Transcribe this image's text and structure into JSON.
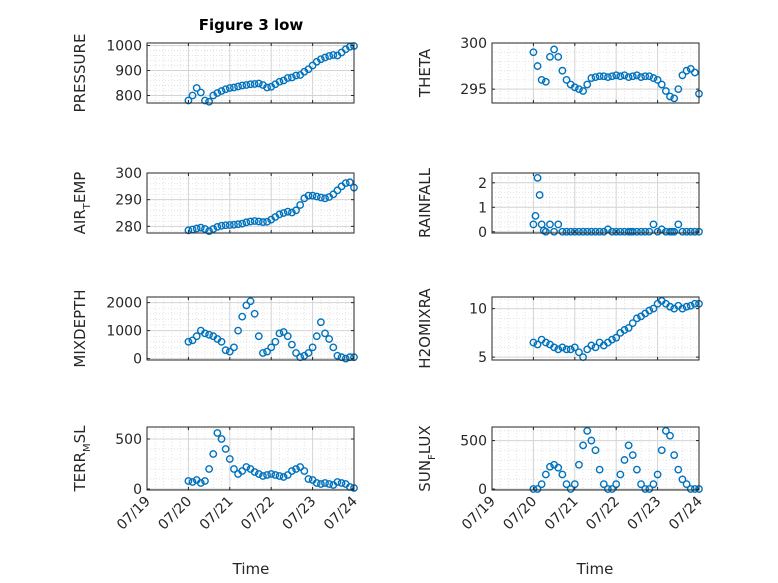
{
  "figure": {
    "title": "Figure 3 low",
    "xlabel": "Time",
    "marker_color": "#0072BD",
    "x_tick_labels": [
      "07/19",
      "07/20",
      "07/21",
      "07/22",
      "07/23",
      "07/24"
    ]
  },
  "chart_data": [
    {
      "type": "scatter",
      "ylabel": "PRESSURE",
      "ylim": [
        770,
        1010
      ],
      "yticks": [
        800,
        900,
        1000
      ],
      "grid": true,
      "x": [
        20.0,
        20.1,
        20.2,
        20.3,
        20.4,
        20.5,
        20.6,
        20.7,
        20.8,
        20.9,
        21.0,
        21.1,
        21.2,
        21.3,
        21.4,
        21.5,
        21.6,
        21.7,
        21.8,
        21.9,
        22.0,
        22.1,
        22.2,
        22.3,
        22.4,
        22.5,
        22.6,
        22.7,
        22.8,
        22.9,
        23.0,
        23.1,
        23.2,
        23.3,
        23.4,
        23.5,
        23.6,
        23.7,
        23.8,
        23.9,
        24.0
      ],
      "y": [
        780,
        800,
        830,
        812,
        780,
        775,
        800,
        810,
        818,
        825,
        830,
        832,
        836,
        840,
        842,
        845,
        846,
        848,
        842,
        832,
        835,
        845,
        855,
        860,
        870,
        872,
        880,
        882,
        895,
        905,
        920,
        935,
        945,
        952,
        958,
        962,
        960,
        972,
        985,
        995,
        998
      ]
    },
    {
      "type": "scatter",
      "ylabel": "THETA",
      "ylim": [
        293.5,
        300
      ],
      "yticks": [
        295,
        300
      ],
      "grid": true,
      "x": [
        20.0,
        20.1,
        20.2,
        20.3,
        20.4,
        20.5,
        20.6,
        20.7,
        20.8,
        20.9,
        21.0,
        21.1,
        21.2,
        21.3,
        21.4,
        21.5,
        21.6,
        21.7,
        21.8,
        21.9,
        22.0,
        22.1,
        22.2,
        22.3,
        22.4,
        22.5,
        22.6,
        22.7,
        22.8,
        22.9,
        23.0,
        23.1,
        23.2,
        23.3,
        23.4,
        23.5,
        23.6,
        23.7,
        23.8,
        23.9,
        24.0
      ],
      "y": [
        299.0,
        297.5,
        296.0,
        295.8,
        298.5,
        299.3,
        298.5,
        297.0,
        296.0,
        295.5,
        295.2,
        295.0,
        294.8,
        295.5,
        296.2,
        296.3,
        296.4,
        296.4,
        296.3,
        296.4,
        296.5,
        296.4,
        296.5,
        296.3,
        296.4,
        296.5,
        296.3,
        296.4,
        296.4,
        296.2,
        296.0,
        295.5,
        294.8,
        294.2,
        294.0,
        295.0,
        296.5,
        297.0,
        297.2,
        296.8,
        294.5
      ]
    },
    {
      "type": "scatter",
      "ylabel": "AIR",
      "ylabel_sub": "T",
      "ylabel_tail": "EMP",
      "ylim": [
        277.5,
        300
      ],
      "yticks": [
        280,
        290,
        300
      ],
      "grid": true,
      "x": [
        20.0,
        20.1,
        20.2,
        20.3,
        20.4,
        20.5,
        20.6,
        20.7,
        20.8,
        20.9,
        21.0,
        21.1,
        21.2,
        21.3,
        21.4,
        21.5,
        21.6,
        21.7,
        21.8,
        21.9,
        22.0,
        22.1,
        22.2,
        22.3,
        22.4,
        22.5,
        22.6,
        22.7,
        22.8,
        22.9,
        23.0,
        23.1,
        23.2,
        23.3,
        23.4,
        23.5,
        23.6,
        23.7,
        23.8,
        23.9,
        24.0
      ],
      "y": [
        278.5,
        278.8,
        279.2,
        279.5,
        279.0,
        278.2,
        279.0,
        279.8,
        280.2,
        280.4,
        280.5,
        280.6,
        280.8,
        281.0,
        281.5,
        281.8,
        282.0,
        281.8,
        281.6,
        281.7,
        282.5,
        283.5,
        284.5,
        285.0,
        285.5,
        285.2,
        286.0,
        288.0,
        290.5,
        291.5,
        291.5,
        291.2,
        290.8,
        290.5,
        291.0,
        292.0,
        293.5,
        295.0,
        296.2,
        296.5,
        294.5
      ]
    },
    {
      "type": "scatter",
      "ylabel": "RAINFALL",
      "ylim": [
        -0.05,
        2.4
      ],
      "yticks": [
        0,
        1,
        2
      ],
      "grid": true,
      "x": [
        20.0,
        20.05,
        20.1,
        20.15,
        20.2,
        20.25,
        20.3,
        20.4,
        20.5,
        20.6,
        20.7,
        20.8,
        20.9,
        21.0,
        21.1,
        21.2,
        21.3,
        21.4,
        21.5,
        21.6,
        21.7,
        21.8,
        21.9,
        22.0,
        22.1,
        22.2,
        22.3,
        22.35,
        22.4,
        22.5,
        22.6,
        22.7,
        22.8,
        22.9,
        23.0,
        23.1,
        23.2,
        23.3,
        23.35,
        23.4,
        23.5,
        23.6,
        23.7,
        23.8,
        23.9,
        24.0
      ],
      "y": [
        0.3,
        0.65,
        2.2,
        1.5,
        0.3,
        0.05,
        0.0,
        0.3,
        0.0,
        0.3,
        0.0,
        0.0,
        0.0,
        0.0,
        0.0,
        0.0,
        0.0,
        0.0,
        0.0,
        0.0,
        0.0,
        0.1,
        0.0,
        0.0,
        0.0,
        0.0,
        0.0,
        0.0,
        0.0,
        0.0,
        0.0,
        0.0,
        0.0,
        0.3,
        0.0,
        0.1,
        0.0,
        0.0,
        0.0,
        0.0,
        0.3,
        0.0,
        0.0,
        0.0,
        0.0,
        0.0
      ]
    },
    {
      "type": "scatter",
      "ylabel": "MIXDEPTH",
      "ylim": [
        -50,
        2200
      ],
      "yticks": [
        0,
        1000,
        2000
      ],
      "grid": true,
      "x": [
        20.0,
        20.1,
        20.2,
        20.3,
        20.4,
        20.5,
        20.6,
        20.7,
        20.8,
        20.9,
        21.0,
        21.1,
        21.2,
        21.3,
        21.4,
        21.5,
        21.6,
        21.7,
        21.8,
        21.9,
        22.0,
        22.1,
        22.2,
        22.3,
        22.4,
        22.5,
        22.6,
        22.7,
        22.8,
        22.9,
        23.0,
        23.1,
        23.2,
        23.3,
        23.4,
        23.5,
        23.6,
        23.7,
        23.8,
        23.9,
        24.0
      ],
      "y": [
        600,
        650,
        800,
        1000,
        900,
        850,
        800,
        700,
        600,
        300,
        250,
        400,
        1000,
        1500,
        1900,
        2050,
        1600,
        800,
        200,
        250,
        400,
        600,
        900,
        950,
        800,
        500,
        200,
        50,
        100,
        200,
        400,
        800,
        1300,
        900,
        700,
        400,
        100,
        50,
        0,
        50,
        50
      ]
    },
    {
      "type": "scatter",
      "ylabel": "H2OMIXRA",
      "ylim": [
        4.7,
        11.2
      ],
      "yticks": [
        5,
        10
      ],
      "grid": true,
      "x": [
        20.0,
        20.1,
        20.2,
        20.3,
        20.4,
        20.5,
        20.6,
        20.7,
        20.8,
        20.9,
        21.0,
        21.1,
        21.2,
        21.3,
        21.4,
        21.5,
        21.6,
        21.7,
        21.8,
        21.9,
        22.0,
        22.1,
        22.2,
        22.3,
        22.4,
        22.5,
        22.6,
        22.7,
        22.8,
        22.9,
        23.0,
        23.1,
        23.2,
        23.3,
        23.4,
        23.5,
        23.6,
        23.7,
        23.8,
        23.9,
        24.0
      ],
      "y": [
        6.5,
        6.3,
        6.8,
        6.5,
        6.3,
        6.0,
        5.8,
        6.0,
        5.8,
        5.8,
        6.0,
        5.5,
        5.0,
        5.8,
        6.2,
        6.0,
        6.5,
        6.2,
        6.5,
        6.8,
        7.0,
        7.5,
        7.8,
        8.0,
        8.5,
        9.0,
        9.2,
        9.5,
        9.8,
        10.0,
        10.5,
        10.8,
        10.5,
        10.2,
        10.0,
        10.3,
        10.0,
        10.2,
        10.3,
        10.5,
        10.5
      ]
    },
    {
      "type": "scatter",
      "ylabel": "TERR",
      "ylabel_sub": "M",
      "ylabel_tail": "SL",
      "ylim": [
        -10,
        620
      ],
      "yticks": [
        0,
        500
      ],
      "grid": true,
      "x": [
        20.0,
        20.1,
        20.2,
        20.3,
        20.4,
        20.5,
        20.6,
        20.7,
        20.8,
        20.9,
        21.0,
        21.1,
        21.2,
        21.3,
        21.4,
        21.5,
        21.6,
        21.7,
        21.8,
        21.9,
        22.0,
        22.1,
        22.2,
        22.3,
        22.4,
        22.5,
        22.6,
        22.7,
        22.8,
        22.9,
        23.0,
        23.1,
        23.2,
        23.3,
        23.4,
        23.5,
        23.6,
        23.7,
        23.8,
        23.9,
        24.0
      ],
      "y": [
        80,
        70,
        90,
        60,
        80,
        200,
        350,
        560,
        500,
        400,
        300,
        200,
        150,
        180,
        220,
        200,
        170,
        150,
        130,
        140,
        150,
        140,
        130,
        120,
        140,
        180,
        200,
        220,
        180,
        100,
        90,
        60,
        50,
        60,
        50,
        40,
        70,
        60,
        50,
        20,
        10
      ]
    },
    {
      "type": "scatter",
      "ylabel": "SUN",
      "ylabel_sub": "F",
      "ylabel_tail": "LUX",
      "ylim": [
        -10,
        640
      ],
      "yticks": [
        0,
        500
      ],
      "grid": true,
      "x": [
        20.0,
        20.1,
        20.2,
        20.3,
        20.4,
        20.5,
        20.6,
        20.7,
        20.8,
        20.9,
        21.0,
        21.1,
        21.2,
        21.3,
        21.4,
        21.5,
        21.6,
        21.7,
        21.8,
        21.9,
        22.0,
        22.1,
        22.2,
        22.3,
        22.4,
        22.5,
        22.6,
        22.7,
        22.8,
        22.9,
        23.0,
        23.1,
        23.2,
        23.3,
        23.4,
        23.5,
        23.6,
        23.7,
        23.8,
        23.9,
        24.0
      ],
      "y": [
        0,
        0,
        50,
        150,
        230,
        250,
        220,
        150,
        50,
        0,
        50,
        250,
        450,
        600,
        500,
        400,
        200,
        50,
        0,
        0,
        50,
        150,
        300,
        450,
        350,
        200,
        50,
        0,
        0,
        50,
        150,
        400,
        600,
        550,
        350,
        200,
        100,
        50,
        0,
        0,
        0
      ]
    }
  ]
}
